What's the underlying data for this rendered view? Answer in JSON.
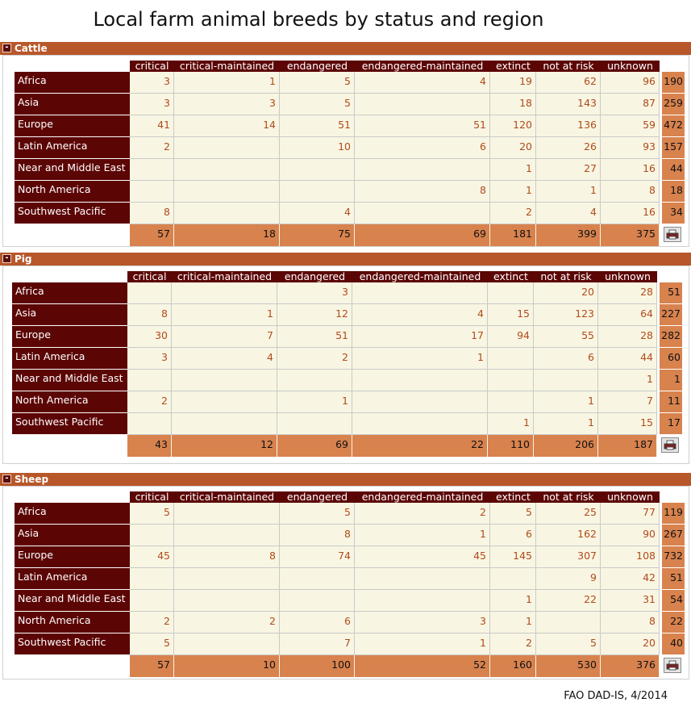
{
  "title": "Local farm animal breeds by status and region",
  "source": "FAO DAD-IS, 4/2014",
  "columns": [
    "critical",
    "critical-maintained",
    "endangered",
    "endangered-maintained",
    "extinct",
    "not at risk",
    "unknown"
  ],
  "sections": [
    {
      "name": "Cattle",
      "rows": [
        {
          "region": "Africa",
          "values": [
            "3",
            "1",
            "5",
            "4",
            "19",
            "62",
            "96"
          ],
          "total": "190"
        },
        {
          "region": "Asia",
          "values": [
            "3",
            "3",
            "5",
            "",
            "18",
            "143",
            "87"
          ],
          "total": "259"
        },
        {
          "region": "Europe",
          "values": [
            "41",
            "14",
            "51",
            "51",
            "120",
            "136",
            "59"
          ],
          "total": "472"
        },
        {
          "region": "Latin America",
          "values": [
            "2",
            "",
            "10",
            "6",
            "20",
            "26",
            "93"
          ],
          "total": "157"
        },
        {
          "region": "Near and Middle East",
          "values": [
            "",
            "",
            "",
            "",
            "1",
            "27",
            "16"
          ],
          "total": "44"
        },
        {
          "region": "North America",
          "values": [
            "",
            "",
            "",
            "8",
            "1",
            "1",
            "8"
          ],
          "total": "18"
        },
        {
          "region": "Southwest Pacific",
          "values": [
            "8",
            "",
            "4",
            "",
            "2",
            "4",
            "16"
          ],
          "total": "34"
        }
      ],
      "column_totals": [
        "57",
        "18",
        "75",
        "69",
        "181",
        "399",
        "375"
      ]
    },
    {
      "name": "Pig",
      "rows": [
        {
          "region": "Africa",
          "values": [
            "",
            "",
            "3",
            "",
            "",
            "20",
            "28"
          ],
          "total": "51"
        },
        {
          "region": "Asia",
          "values": [
            "8",
            "1",
            "12",
            "4",
            "15",
            "123",
            "64"
          ],
          "total": "227"
        },
        {
          "region": "Europe",
          "values": [
            "30",
            "7",
            "51",
            "17",
            "94",
            "55",
            "28"
          ],
          "total": "282"
        },
        {
          "region": "Latin America",
          "values": [
            "3",
            "4",
            "2",
            "1",
            "",
            "6",
            "44"
          ],
          "total": "60"
        },
        {
          "region": "Near and Middle East",
          "values": [
            "",
            "",
            "",
            "",
            "",
            "",
            "1"
          ],
          "total": "1"
        },
        {
          "region": "North America",
          "values": [
            "2",
            "",
            "1",
            "",
            "",
            "1",
            "7"
          ],
          "total": "11"
        },
        {
          "region": "Southwest Pacific",
          "values": [
            "",
            "",
            "",
            "",
            "1",
            "1",
            "15"
          ],
          "total": "17"
        }
      ],
      "column_totals": [
        "43",
        "12",
        "69",
        "22",
        "110",
        "206",
        "187"
      ]
    },
    {
      "name": "Sheep",
      "rows": [
        {
          "region": "Africa",
          "values": [
            "5",
            "",
            "5",
            "2",
            "5",
            "25",
            "77"
          ],
          "total": "119"
        },
        {
          "region": "Asia",
          "values": [
            "",
            "",
            "8",
            "1",
            "6",
            "162",
            "90"
          ],
          "total": "267"
        },
        {
          "region": "Europe",
          "values": [
            "45",
            "8",
            "74",
            "45",
            "145",
            "307",
            "108"
          ],
          "total": "732"
        },
        {
          "region": "Latin America",
          "values": [
            "",
            "",
            "",
            "",
            "",
            "9",
            "42"
          ],
          "total": "51"
        },
        {
          "region": "Near and Middle East",
          "values": [
            "",
            "",
            "",
            "",
            "1",
            "22",
            "31"
          ],
          "total": "54"
        },
        {
          "region": "North America",
          "values": [
            "2",
            "2",
            "6",
            "3",
            "1",
            "",
            "8"
          ],
          "total": "22"
        },
        {
          "region": "Southwest Pacific",
          "values": [
            "5",
            "",
            "7",
            "1",
            "2",
            "5",
            "20"
          ],
          "total": "40"
        }
      ],
      "column_totals": [
        "57",
        "10",
        "100",
        "52",
        "160",
        "530",
        "376"
      ]
    }
  ],
  "chart_data": {
    "type": "table",
    "title": "Local farm animal breeds by status and region",
    "tables": [
      {
        "name": "Cattle",
        "columns": [
          "critical",
          "critical-maintained",
          "endangered",
          "endangered-maintained",
          "extinct",
          "not at risk",
          "unknown"
        ],
        "rows": [
          "Africa",
          "Asia",
          "Europe",
          "Latin America",
          "Near and Middle East",
          "North America",
          "Southwest Pacific"
        ],
        "values": [
          [
            3,
            1,
            5,
            4,
            19,
            62,
            96
          ],
          [
            3,
            3,
            5,
            null,
            18,
            143,
            87
          ],
          [
            41,
            14,
            51,
            51,
            120,
            136,
            59
          ],
          [
            2,
            null,
            10,
            6,
            20,
            26,
            93
          ],
          [
            null,
            null,
            null,
            null,
            1,
            27,
            16
          ],
          [
            null,
            null,
            null,
            8,
            1,
            1,
            8
          ],
          [
            8,
            null,
            4,
            null,
            2,
            4,
            16
          ]
        ],
        "row_totals": [
          190,
          259,
          472,
          157,
          44,
          18,
          34
        ],
        "column_totals": [
          57,
          18,
          75,
          69,
          181,
          399,
          375
        ]
      },
      {
        "name": "Pig",
        "columns": [
          "critical",
          "critical-maintained",
          "endangered",
          "endangered-maintained",
          "extinct",
          "not at risk",
          "unknown"
        ],
        "rows": [
          "Africa",
          "Asia",
          "Europe",
          "Latin America",
          "Near and Middle East",
          "North America",
          "Southwest Pacific"
        ],
        "values": [
          [
            null,
            null,
            3,
            null,
            null,
            20,
            28
          ],
          [
            8,
            1,
            12,
            4,
            15,
            123,
            64
          ],
          [
            30,
            7,
            51,
            17,
            94,
            55,
            28
          ],
          [
            3,
            4,
            2,
            1,
            null,
            6,
            44
          ],
          [
            null,
            null,
            null,
            null,
            null,
            null,
            1
          ],
          [
            2,
            null,
            1,
            null,
            null,
            1,
            7
          ],
          [
            null,
            null,
            null,
            null,
            1,
            1,
            15
          ]
        ],
        "row_totals": [
          51,
          227,
          282,
          60,
          1,
          11,
          17
        ],
        "column_totals": [
          43,
          12,
          69,
          22,
          110,
          206,
          187
        ]
      },
      {
        "name": "Sheep",
        "columns": [
          "critical",
          "critical-maintained",
          "endangered",
          "endangered-maintained",
          "extinct",
          "not at risk",
          "unknown"
        ],
        "rows": [
          "Africa",
          "Asia",
          "Europe",
          "Latin America",
          "Near and Middle East",
          "North America",
          "Southwest Pacific"
        ],
        "values": [
          [
            5,
            null,
            5,
            2,
            5,
            25,
            77
          ],
          [
            null,
            null,
            8,
            1,
            6,
            162,
            90
          ],
          [
            45,
            8,
            74,
            45,
            145,
            307,
            108
          ],
          [
            null,
            null,
            null,
            null,
            null,
            9,
            42
          ],
          [
            null,
            null,
            null,
            null,
            1,
            22,
            31
          ],
          [
            2,
            2,
            6,
            3,
            1,
            null,
            8
          ],
          [
            5,
            null,
            7,
            1,
            2,
            5,
            20
          ]
        ],
        "row_totals": [
          119,
          267,
          732,
          51,
          54,
          22,
          40
        ],
        "column_totals": [
          57,
          10,
          100,
          52,
          160,
          530,
          376
        ]
      }
    ]
  },
  "icons": {
    "collapse": "collapse-icon",
    "print": "print-icon"
  },
  "colors": {
    "header": "#5c0505",
    "bar": "#b8572a",
    "cell_bg": "#f8f6e2",
    "value_text": "#b24a1c",
    "totals_bg": "#d8824e"
  }
}
